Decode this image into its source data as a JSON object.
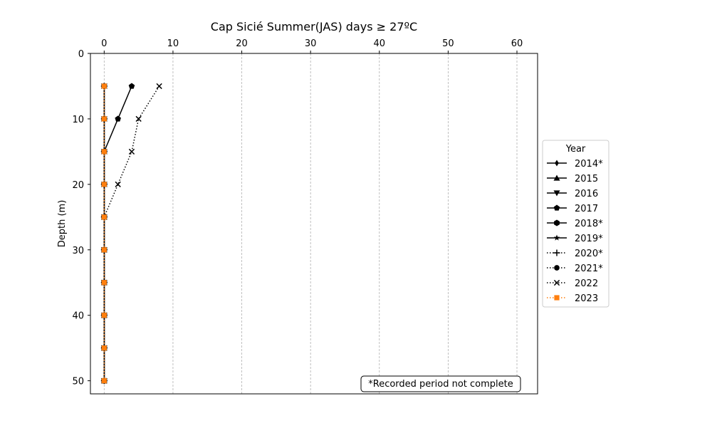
{
  "chart_data": {
    "type": "line",
    "title": "Cap Sicié Summer(JAS) days ≥ 27ºC",
    "xlabel": "",
    "ylabel": "Depth (m)",
    "xlim": [
      -2,
      63
    ],
    "ylim": [
      52,
      0
    ],
    "x_axis_position": "top",
    "y_inverted": true,
    "x_ticks": [
      0,
      10,
      20,
      30,
      40,
      50,
      60
    ],
    "y_ticks": [
      0,
      10,
      20,
      30,
      40,
      50
    ],
    "x_grid": true,
    "depths": [
      5,
      10,
      15,
      20,
      25,
      30,
      35,
      40,
      45,
      50
    ],
    "legend_title": "Year",
    "legend_position": "right outside",
    "annotation": "*Recorded period not complete",
    "series": [
      {
        "name": "2014*",
        "marker": "diamond",
        "linestyle": "solid",
        "color": "#000000",
        "values": [
          0,
          0,
          0,
          0,
          0,
          0,
          0,
          0,
          0,
          0
        ]
      },
      {
        "name": "2015",
        "marker": "triangle-up",
        "linestyle": "solid",
        "color": "#000000",
        "values": [
          0,
          0,
          0,
          0,
          0,
          0,
          0,
          0,
          0,
          0
        ]
      },
      {
        "name": "2016",
        "marker": "triangle-down",
        "linestyle": "solid",
        "color": "#000000",
        "values": [
          0,
          0,
          0,
          0,
          0,
          0,
          0,
          0,
          0,
          0
        ]
      },
      {
        "name": "2017",
        "marker": "pentagon",
        "linestyle": "solid",
        "color": "#000000",
        "values": [
          4,
          2,
          0,
          0,
          0,
          0,
          0,
          0,
          0,
          0
        ]
      },
      {
        "name": "2018*",
        "marker": "hexagon",
        "linestyle": "solid",
        "color": "#000000",
        "values": [
          0,
          0,
          0,
          0,
          0,
          0,
          0,
          0,
          0,
          0
        ]
      },
      {
        "name": "2019*",
        "marker": "star",
        "linestyle": "solid",
        "color": "#000000",
        "values": [
          0,
          0,
          0,
          0,
          0,
          0,
          0,
          0,
          0,
          0
        ]
      },
      {
        "name": "2020*",
        "marker": "plus",
        "linestyle": "dotted",
        "color": "#000000",
        "values": [
          0,
          0,
          0,
          0,
          0,
          0,
          0,
          0,
          0,
          0
        ]
      },
      {
        "name": "2021*",
        "marker": "circle",
        "linestyle": "dotted",
        "color": "#000000",
        "values": [
          0,
          0,
          0,
          0,
          0,
          0,
          0,
          0,
          0,
          0
        ]
      },
      {
        "name": "2022",
        "marker": "x",
        "linestyle": "dotted",
        "color": "#000000",
        "values": [
          8,
          5,
          4,
          2,
          0,
          0,
          0,
          0,
          0,
          0
        ]
      },
      {
        "name": "2023",
        "marker": "square",
        "linestyle": "dotted",
        "color": "#ff7f0e",
        "values": [
          0,
          0,
          0,
          0,
          0,
          0,
          0,
          0,
          0,
          0
        ]
      }
    ]
  }
}
